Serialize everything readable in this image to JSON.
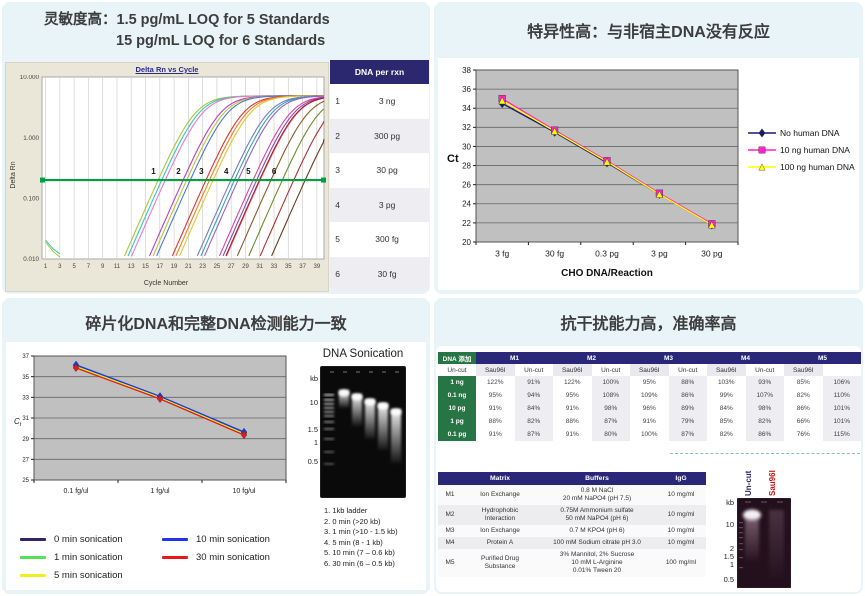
{
  "colors": {
    "panel_bg": "#e9f4f8",
    "navy_header": "#2b2778",
    "green_header": "#277445",
    "threshold_green": "#00a040",
    "plot_gray": "#c0c0c0",
    "amp_bg": "#ebe7d8"
  },
  "panels": {
    "sensitivity": {
      "title_line1": "灵敏度高：1.5 pg/mL LOQ for 5 Standards",
      "title_line2": "15 pg/mL LOQ for 6 Standards",
      "table": {
        "header": "DNA per rxn",
        "rows": [
          [
            "1",
            "3 ng"
          ],
          [
            "2",
            "300 pg"
          ],
          [
            "3",
            "30 pg"
          ],
          [
            "4",
            "3 pg"
          ],
          [
            "5",
            "300 fg"
          ],
          [
            "6",
            "30 fg"
          ]
        ]
      }
    },
    "specificity": {
      "title": "特异性高：与非宿主DNA没有反应"
    },
    "sonication": {
      "title": "碎片化DNA和完整DNA检测能力一致",
      "gel": {
        "title": "DNA Sonication",
        "kb_unit": "kb",
        "kb_markers": [
          "10",
          "1.5",
          "1",
          "0.5"
        ],
        "caption": [
          "1. 1kb ladder",
          "2. 0 min (>20 kb)",
          "3. 1 min (>10 - 1.5 kb)",
          "4. 5 min (8 - 1 kb)",
          "5. 10 min (7 – 0.6 kb)",
          "6. 30 min (6 – 0.5 kb)"
        ]
      }
    },
    "interference": {
      "title": "抗干扰能力高，准确率高",
      "recovery_table": {
        "corner_header": "DNA 添加",
        "groups": [
          "M1",
          "M2",
          "M3",
          "M4",
          "M5"
        ],
        "sub_headers": [
          "Un-cut",
          "Sau96I"
        ],
        "row_labels": [
          "1 ng",
          "0.1 ng",
          "10 pg",
          "1 pg",
          "0.1 pg"
        ],
        "rows": [
          [
            "122%",
            "91%",
            "122%",
            "100%",
            "95%",
            "88%",
            "103%",
            "93%",
            "85%",
            "106%"
          ],
          [
            "95%",
            "94%",
            "95%",
            "108%",
            "109%",
            "86%",
            "99%",
            "107%",
            "82%",
            "110%"
          ],
          [
            "91%",
            "84%",
            "91%",
            "98%",
            "96%",
            "89%",
            "84%",
            "98%",
            "86%",
            "101%"
          ],
          [
            "88%",
            "82%",
            "88%",
            "87%",
            "91%",
            "79%",
            "85%",
            "82%",
            "66%",
            "101%"
          ],
          [
            "91%",
            "87%",
            "91%",
            "80%",
            "100%",
            "87%",
            "82%",
            "86%",
            "76%",
            "115%"
          ]
        ]
      },
      "matrix_table": {
        "headers": [
          "",
          "Matrix",
          "Buffers",
          "IgG"
        ],
        "rows": [
          {
            "id": "M1",
            "matrix": [
              "Ion Exchange"
            ],
            "buffers": [
              "0.8 M NaCl",
              "20 mM NaPO4 (pH 7.5)"
            ],
            "igg": "10 mg/ml"
          },
          {
            "id": "M2",
            "matrix": [
              "Hydrophobic",
              "Interaction"
            ],
            "buffers": [
              "0.75M Ammonium sulfate",
              "50 mM NaPO4 (pH 6)"
            ],
            "igg": "10 mg/ml"
          },
          {
            "id": "M3",
            "matrix": [
              "Ion Exchange"
            ],
            "buffers": [
              "0.7 M KPO4 (pH 6)"
            ],
            "igg": "10 mg/ml"
          },
          {
            "id": "M4",
            "matrix": [
              "Protein A"
            ],
            "buffers": [
              "100 mM Sodium citrate pH 3.0"
            ],
            "igg": "10 mg/ml"
          },
          {
            "id": "M5",
            "matrix": [
              "Purified Drug",
              "Substance"
            ],
            "buffers": [
              "3% Mannitol, 2% Sucrose",
              "10 mM L-Arginine",
              "0.01% Tween 20"
            ],
            "igg": "100 mg/ml"
          }
        ]
      },
      "gel": {
        "lane_labels": [
          {
            "text": "Un-cut",
            "color": "#2b2768"
          },
          {
            "text": "Sau96I",
            "color": "#cc1111"
          }
        ],
        "kb_unit": "kb",
        "kb_markers": [
          "10",
          "2",
          "1.5",
          "1",
          "0.5"
        ]
      }
    }
  },
  "chart_data": [
    {
      "id": "amplification",
      "type": "line",
      "title": "Delta Rn vs Cycle",
      "xlabel": "Cycle Number",
      "ylabel": "Delta Rn",
      "y_scale": "log",
      "ylim": [
        0.01,
        10
      ],
      "y_tick_labels": [
        "10.000",
        "1.000",
        "0.100",
        "0.010"
      ],
      "x_ticks": [
        1,
        3,
        5,
        7,
        9,
        11,
        13,
        15,
        17,
        19,
        21,
        23,
        25,
        27,
        29,
        31,
        33,
        35,
        37,
        39
      ],
      "threshold": 0.2,
      "grid": "vertical",
      "curve_groups": [
        {
          "label": "1",
          "ct": 17.3,
          "spread": 0.5,
          "colors": [
            "#a8c832",
            "#2fc8c8",
            "#e878c8"
          ]
        },
        {
          "label": "2",
          "ct": 20.8,
          "spread": 0.5,
          "colors": [
            "#c03cc0",
            "#b4c832",
            "#4878d8"
          ]
        },
        {
          "label": "3",
          "ct": 24.0,
          "spread": 0.5,
          "colors": [
            "#e43030",
            "#f08020",
            "#d8c832"
          ]
        },
        {
          "label": "4",
          "ct": 27.5,
          "spread": 0.5,
          "colors": [
            "#7878cc",
            "#30a8a8",
            "#9860c8"
          ]
        },
        {
          "label": "5",
          "ct": 30.6,
          "spread": 0.5,
          "colors": [
            "#e040a8",
            "#8848b0",
            "#f07898"
          ]
        },
        {
          "label": "6",
          "ct": 34.2,
          "spread": 1.6,
          "colors": [
            "#a02020",
            "#8a5828",
            "#708a28",
            "#b03030",
            "#6a3a1a"
          ]
        }
      ]
    },
    {
      "id": "specificity",
      "type": "line",
      "categories": [
        "3 fg",
        "30 fg",
        "0.3 pg",
        "3 pg",
        "30 pg"
      ],
      "xlabel": "CHO DNA/Reaction",
      "ylabel": "Ct",
      "ylim": [
        20,
        38
      ],
      "y_tick_step": 2,
      "plot_bg": "#c0c0c0",
      "legend_position": "right",
      "series": [
        {
          "name": "No human DNA",
          "color": "#1a1a6e",
          "marker": "diamond",
          "values": [
            34.5,
            31.5,
            28.3,
            25.0,
            21.8
          ]
        },
        {
          "name": "10 ng human DNA",
          "color": "#ff22cc",
          "marker": "square",
          "values": [
            35.0,
            31.7,
            28.5,
            25.1,
            21.9
          ]
        },
        {
          "name": "100 ng human DNA",
          "color": "#ffff00",
          "marker": "triangle",
          "values": [
            34.8,
            31.6,
            28.4,
            25.0,
            21.8
          ]
        }
      ]
    },
    {
      "id": "sonication_ct",
      "type": "line",
      "categories": [
        "0.1 fg/ul",
        "1 fg/ul",
        "10 fg/ul"
      ],
      "xlabel": "",
      "ylabel": "Ct",
      "ylim": [
        25,
        37
      ],
      "y_tick_step": 2,
      "plot_bg": "#c0c0c0",
      "legend_position": "below",
      "series": [
        {
          "name": "0 min sonication",
          "color": "#2b2768",
          "marker": "diamond",
          "values": [
            36.05,
            33.05,
            29.55
          ]
        },
        {
          "name": "1 min sonication",
          "color": "#55e055",
          "marker": "diamond",
          "values": [
            36.0,
            33.0,
            29.5
          ]
        },
        {
          "name": "5 min sonication",
          "color": "#f0f020",
          "marker": "diamond",
          "values": [
            35.95,
            32.95,
            29.45
          ]
        },
        {
          "name": "10 min sonication",
          "color": "#2233ee",
          "marker": "diamond",
          "values": [
            36.15,
            33.1,
            29.65
          ]
        },
        {
          "name": "30 min sonication",
          "color": "#e81818",
          "marker": "diamond",
          "values": [
            35.85,
            32.85,
            29.35
          ]
        }
      ],
      "legend_columns": [
        [
          0,
          1,
          2
        ],
        [
          3,
          4
        ]
      ]
    }
  ]
}
